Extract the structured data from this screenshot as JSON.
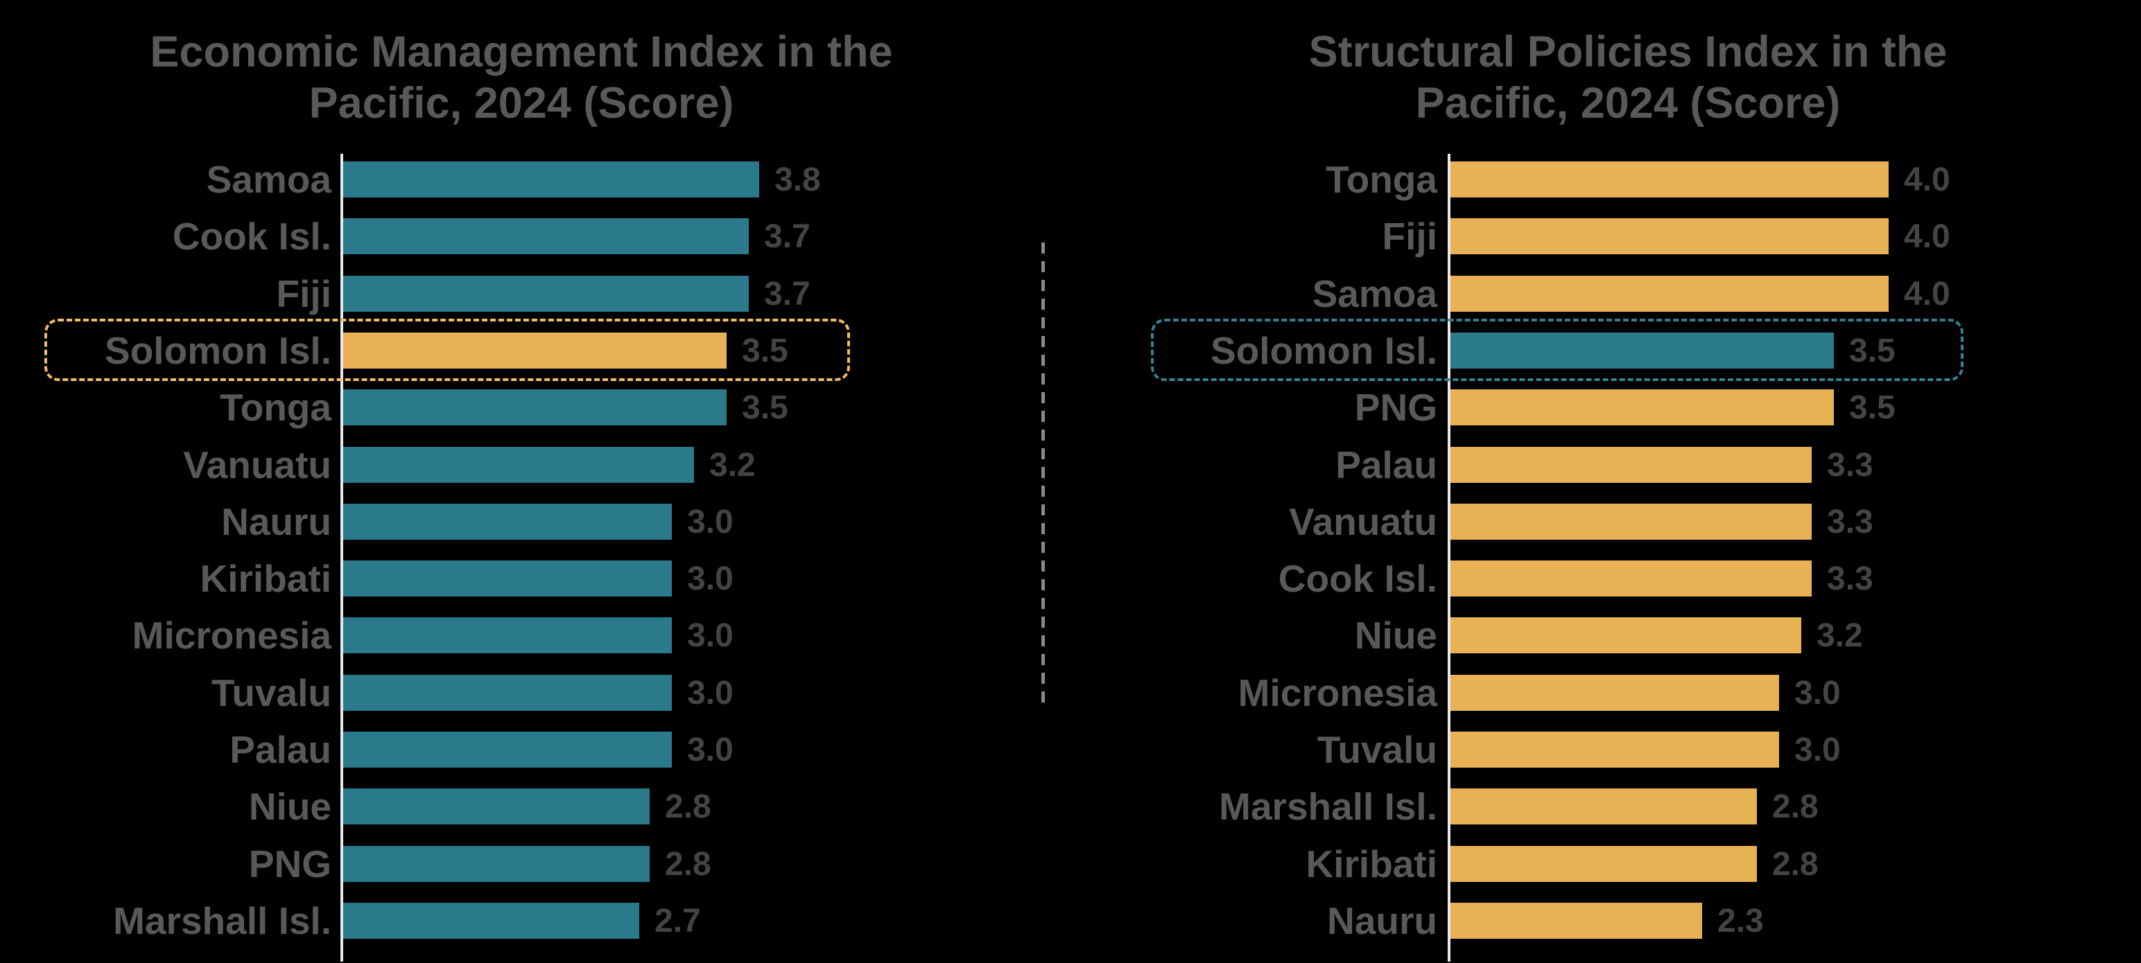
{
  "page": {
    "background": "#000000",
    "divider": {
      "color": "#8A8A8A",
      "style": "dashed-vertical"
    }
  },
  "chart_data": [
    {
      "type": "bar",
      "orientation": "horizontal",
      "title": "Economic Management Index in the Pacific, 2024 (Score)",
      "title_lines": [
        "Economic Management Index in the",
        "Pacific, 2024 (Score)"
      ],
      "categories": [
        "Samoa",
        "Cook Isl.",
        "Fiji",
        "Solomon Isl.",
        "Tonga",
        "Vanuatu",
        "Nauru",
        "Kiribati",
        "Micronesia",
        "Tuvalu",
        "Palau",
        "Niue",
        "PNG",
        "Marshall Isl."
      ],
      "values": [
        3.8,
        3.7,
        3.7,
        3.5,
        3.5,
        3.2,
        3.0,
        3.0,
        3.0,
        3.0,
        3.0,
        2.8,
        2.8,
        2.7
      ],
      "value_labels": [
        "3.8",
        "3.7",
        "3.7",
        "3.5",
        "3.5",
        "3.2",
        "3.0",
        "3.0",
        "3.0",
        "3.0",
        "3.0",
        "2.8",
        "2.8",
        "2.7"
      ],
      "xlim": [
        0,
        4.0
      ],
      "grid": false,
      "legend": "none",
      "bar_color": "#2A7A8C",
      "highlighted_category": "Solomon Isl.",
      "highlight_bar_color": "#E9B156",
      "highlight_box_color": "#F0BC66",
      "title_color": "#595959",
      "label_color": "#595959",
      "value_color": "#444444",
      "axis_color": "#E8E8E8"
    },
    {
      "type": "bar",
      "orientation": "horizontal",
      "title": "Structural Policies Index in the Pacific, 2024 (Score)",
      "title_lines": [
        "Structural Policies Index in the",
        "Pacific, 2024 (Score)"
      ],
      "categories": [
        "Tonga",
        "Fiji",
        "Samoa",
        "Solomon Isl.",
        "PNG",
        "Palau",
        "Vanuatu",
        "Cook Isl.",
        "Niue",
        "Micronesia",
        "Tuvalu",
        "Marshall Isl.",
        "Kiribati",
        "Nauru"
      ],
      "values": [
        4.0,
        4.0,
        4.0,
        3.5,
        3.5,
        3.3,
        3.3,
        3.3,
        3.2,
        3.0,
        3.0,
        2.8,
        2.8,
        2.3
      ],
      "value_labels": [
        "4.0",
        "4.0",
        "4.0",
        "3.5",
        "3.5",
        "3.3",
        "3.3",
        "3.3",
        "3.2",
        "3.0",
        "3.0",
        "2.8",
        "2.8",
        "2.3"
      ],
      "xlim": [
        0,
        4.0
      ],
      "grid": false,
      "legend": "none",
      "bar_color": "#E9B156",
      "highlighted_category": "Solomon Isl.",
      "highlight_bar_color": "#2A7A8C",
      "highlight_box_color": "#35818F",
      "title_color": "#595959",
      "label_color": "#595959",
      "value_color": "#444444",
      "axis_color": "#E8E8E8"
    }
  ]
}
